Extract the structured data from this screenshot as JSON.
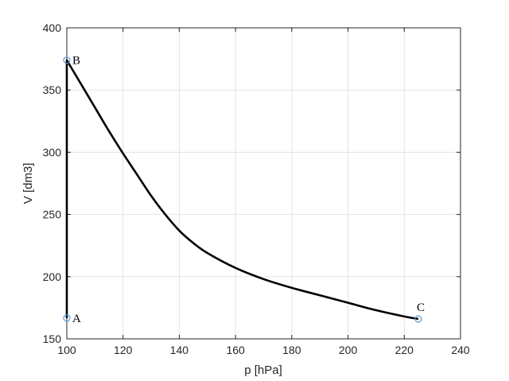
{
  "chart_data": {
    "type": "line",
    "title": "",
    "xlabel": "p [hPa]",
    "ylabel": "V [dm3]",
    "xlim": [
      100,
      240
    ],
    "ylim": [
      150,
      400
    ],
    "xticks": [
      100,
      120,
      140,
      160,
      180,
      200,
      220,
      240
    ],
    "yticks": [
      150,
      200,
      250,
      300,
      350,
      400
    ],
    "xtick_labels": [
      "100",
      "120",
      "140",
      "160",
      "180",
      "200",
      "220",
      "240"
    ],
    "ytick_labels": [
      "150",
      "200",
      "250",
      "300",
      "350",
      "400"
    ],
    "grid": true,
    "line_color": "#000000",
    "marker_color": "#5b9bd5",
    "curve": {
      "x": [
        100,
        100,
        105,
        110,
        115,
        120,
        125,
        130,
        135,
        140,
        145,
        150,
        160,
        170,
        180,
        190,
        200,
        210,
        220,
        225
      ],
      "y": [
        166.7,
        374,
        355,
        336,
        317,
        299,
        282,
        265,
        250,
        237,
        227,
        219,
        207,
        198,
        191,
        185,
        179,
        173,
        168,
        166
      ]
    },
    "points": [
      {
        "label": "A",
        "x": 100,
        "y": 166.7
      },
      {
        "label": "B",
        "x": 100,
        "y": 374
      },
      {
        "label": "C",
        "x": 225,
        "y": 166
      }
    ]
  }
}
